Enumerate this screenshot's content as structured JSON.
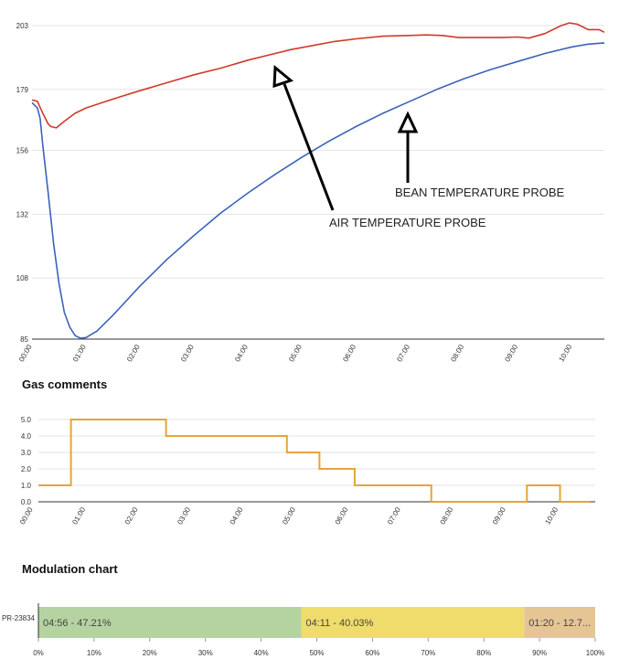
{
  "chart_data": [
    {
      "type": "line",
      "title": "",
      "xlabel": "",
      "ylabel": "",
      "x_tick_labels": [
        "00:00",
        "01:00",
        "02:00",
        "03:00",
        "04:00",
        "05:00",
        "06:00",
        "07:00",
        "08:00",
        "09:00",
        "10:00"
      ],
      "y_tick_labels": [
        "85",
        "108",
        "132",
        "156",
        "179",
        "203"
      ],
      "ylim": [
        85,
        203
      ],
      "xlim": [
        0,
        10.6
      ],
      "series": [
        {
          "name": "Air temperature probe",
          "color": "#d03a2a",
          "x": [
            0,
            0.1,
            0.2,
            0.3,
            0.35,
            0.45,
            0.6,
            0.8,
            1.0,
            1.3,
            1.6,
            2.0,
            2.5,
            3.0,
            3.5,
            4.0,
            4.4,
            4.8,
            5.2,
            5.6,
            6.0,
            6.5,
            7.0,
            7.3,
            7.6,
            7.9,
            8.3,
            8.7,
            9.0,
            9.2,
            9.5,
            9.8,
            9.95,
            10.1,
            10.3,
            10.5,
            10.6
          ],
          "values": [
            175,
            174.5,
            170,
            166,
            165,
            164.5,
            167,
            170,
            172,
            174,
            176,
            178.5,
            181.5,
            184.5,
            187,
            190,
            192,
            194,
            195.5,
            197,
            198,
            199,
            199.3,
            199.5,
            199.3,
            198.5,
            198.5,
            198.5,
            198.7,
            198.3,
            200,
            203,
            204,
            203.5,
            201.5,
            201.5,
            200.5
          ]
        },
        {
          "name": "Bean temperature probe",
          "color": "#3b63b8",
          "x": [
            0,
            0.1,
            0.15,
            0.2,
            0.3,
            0.4,
            0.5,
            0.6,
            0.7,
            0.8,
            0.9,
            1.0,
            1.2,
            1.5,
            2.0,
            2.5,
            3.0,
            3.5,
            4.0,
            4.5,
            5.0,
            5.5,
            6.0,
            6.5,
            7.0,
            7.5,
            8.0,
            8.5,
            9.0,
            9.5,
            10.0,
            10.3,
            10.6
          ],
          "values": [
            174,
            172,
            168,
            158,
            140,
            121,
            106,
            95,
            89.5,
            86.3,
            85.3,
            85.6,
            88,
            94,
            105,
            115,
            124,
            132.5,
            140,
            147,
            153.5,
            159.5,
            165,
            170,
            174.5,
            179,
            183,
            186.5,
            189.5,
            192.5,
            195,
            196,
            196.5
          ]
        }
      ],
      "annotations": [
        "BEAN TEMPERATURE PROBE",
        "AIR TEMPERATURE PROBE"
      ]
    },
    {
      "type": "line",
      "title": "Gas comments",
      "x_tick_labels": [
        "00:00",
        "01:00",
        "02:00",
        "03:00",
        "04:00",
        "05:00",
        "06:00",
        "07:00",
        "08:00",
        "09:00",
        "10:00"
      ],
      "y_tick_labels": [
        "0.0",
        "1.0",
        "2.0",
        "3.0",
        "4.0",
        "5.0"
      ],
      "ylim": [
        0,
        5
      ],
      "xlim": [
        0,
        10.6
      ],
      "series": [
        {
          "name": "Gas",
          "color": "#e8a33a",
          "step": true,
          "x": [
            0,
            0.62,
            0.62,
            2.43,
            2.43,
            4.73,
            4.73,
            5.35,
            5.35,
            6.02,
            6.02,
            7.48,
            7.48,
            9.3,
            9.3,
            9.93,
            9.93,
            10.5
          ],
          "values": [
            1,
            1,
            5,
            5,
            4,
            4,
            3,
            3,
            2,
            2,
            1,
            1,
            0,
            0,
            1,
            1,
            0,
            0
          ]
        }
      ]
    },
    {
      "type": "bar",
      "title": "Modulation chart",
      "orientation": "horizontal",
      "stacked": true,
      "categories": [
        "PR-23834"
      ],
      "x_tick_labels": [
        "0%",
        "10%",
        "20%",
        "30%",
        "40%",
        "50%",
        "60%",
        "70%",
        "80%",
        "90%",
        "100%"
      ],
      "xlim": [
        0,
        100
      ],
      "series": [
        {
          "name": "segment-1",
          "label": "04:56 - 47.21%",
          "value": 47.21,
          "color": "#b5d3a0"
        },
        {
          "name": "segment-2",
          "label": "04:11 - 40.03%",
          "value": 40.03,
          "color": "#f0dc6c"
        },
        {
          "name": "segment-3",
          "label": "01:20 - 12.7...",
          "value": 12.76,
          "color": "#e6c595"
        }
      ]
    }
  ]
}
